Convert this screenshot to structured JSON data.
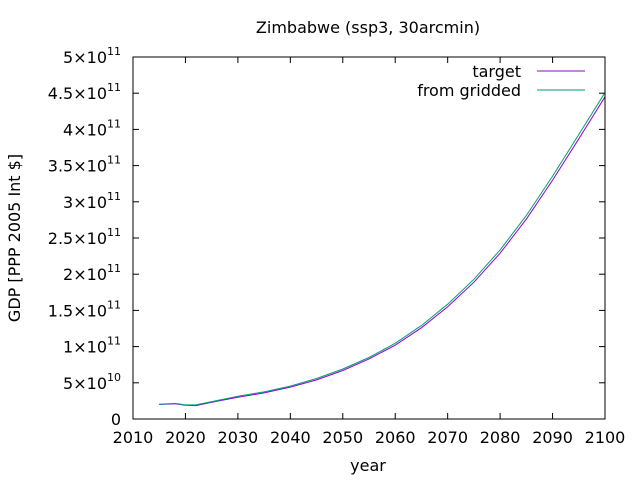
{
  "chart_data": {
    "type": "line",
    "title": "Zimbabwe (ssp3, 30arcmin)",
    "xlabel": "year",
    "ylabel": "GDP [PPP 2005 Int $]",
    "xlim": [
      2010,
      2100
    ],
    "ylim": [
      0,
      500000000000
    ],
    "x_ticks": [
      2010,
      2020,
      2030,
      2040,
      2050,
      2060,
      2070,
      2080,
      2090,
      2100
    ],
    "y_ticks": [
      {
        "value": 0,
        "mantissa": "0",
        "exponent": ""
      },
      {
        "value": 50000000000,
        "mantissa": "5×10",
        "exponent": "10"
      },
      {
        "value": 100000000000,
        "mantissa": "1×10",
        "exponent": "11"
      },
      {
        "value": 150000000000,
        "mantissa": "1.5×10",
        "exponent": "11"
      },
      {
        "value": 200000000000,
        "mantissa": "2×10",
        "exponent": "11"
      },
      {
        "value": 250000000000,
        "mantissa": "2.5×10",
        "exponent": "11"
      },
      {
        "value": 300000000000,
        "mantissa": "3×10",
        "exponent": "11"
      },
      {
        "value": 350000000000,
        "mantissa": "3.5×10",
        "exponent": "11"
      },
      {
        "value": 400000000000,
        "mantissa": "4×10",
        "exponent": "11"
      },
      {
        "value": 450000000000,
        "mantissa": "4.5×10",
        "exponent": "11"
      },
      {
        "value": 500000000000,
        "mantissa": "5×10",
        "exponent": "11"
      }
    ],
    "grid": false,
    "legend_position": "top-right",
    "series": [
      {
        "name": "target",
        "color": "#9400d3",
        "x": [
          2015,
          2018,
          2020,
          2022,
          2025,
          2030,
          2035,
          2040,
          2045,
          2050,
          2055,
          2060,
          2065,
          2070,
          2075,
          2080,
          2085,
          2090,
          2095,
          2100
        ],
        "y": [
          20000000000,
          21000000000,
          19000000000,
          18500000000,
          23000000000,
          30000000000,
          36000000000,
          44000000000,
          54000000000,
          67000000000,
          83000000000,
          102000000000,
          126000000000,
          155000000000,
          189000000000,
          229000000000,
          276000000000,
          330000000000,
          387000000000,
          445000000000
        ]
      },
      {
        "name": "from gridded",
        "color": "#009e73",
        "x": [
          2015,
          2018,
          2020,
          2022,
          2025,
          2030,
          2035,
          2040,
          2045,
          2050,
          2055,
          2060,
          2065,
          2070,
          2075,
          2080,
          2085,
          2090,
          2095,
          2100
        ],
        "y": [
          20500000000,
          21500000000,
          19500000000,
          19500000000,
          24000000000,
          31500000000,
          37500000000,
          45500000000,
          56000000000,
          69000000000,
          85000000000,
          104500000000,
          129000000000,
          158500000000,
          193000000000,
          233500000000,
          281000000000,
          335500000000,
          393000000000,
          451000000000
        ]
      }
    ]
  }
}
